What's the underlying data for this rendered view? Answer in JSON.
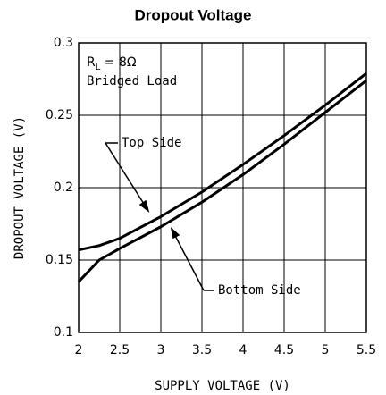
{
  "chart_data": {
    "type": "line",
    "title": "Dropout Voltage",
    "xlabel": "SUPPLY VOLTAGE (V)",
    "ylabel": "DROPOUT VOLTAGE (V)",
    "x": [
      2,
      2.25,
      2.5,
      3,
      3.5,
      4,
      4.5,
      5,
      5.5
    ],
    "series": [
      {
        "name": "Top Side",
        "color": "#000000",
        "values": [
          0.157,
          0.16,
          0.165,
          0.18,
          0.197,
          0.216,
          0.236,
          0.257,
          0.279
        ]
      },
      {
        "name": "Bottom Side",
        "color": "#000000",
        "values": [
          0.135,
          0.15,
          0.158,
          0.173,
          0.19,
          0.209,
          0.23,
          0.252,
          0.274
        ]
      }
    ],
    "annotations": {
      "load_symbol": "R",
      "load_subscript": "L",
      "load_value": " = 8Ω",
      "load_type": "Bridged Load"
    },
    "xlim": [
      2,
      5.5
    ],
    "xticks": [
      2,
      2.5,
      3,
      3.5,
      4,
      4.5,
      5,
      5.5
    ],
    "ylim": [
      0.1,
      0.3
    ],
    "yticks": [
      0.1,
      0.15,
      0.2,
      0.25,
      0.3
    ],
    "grid": true
  }
}
